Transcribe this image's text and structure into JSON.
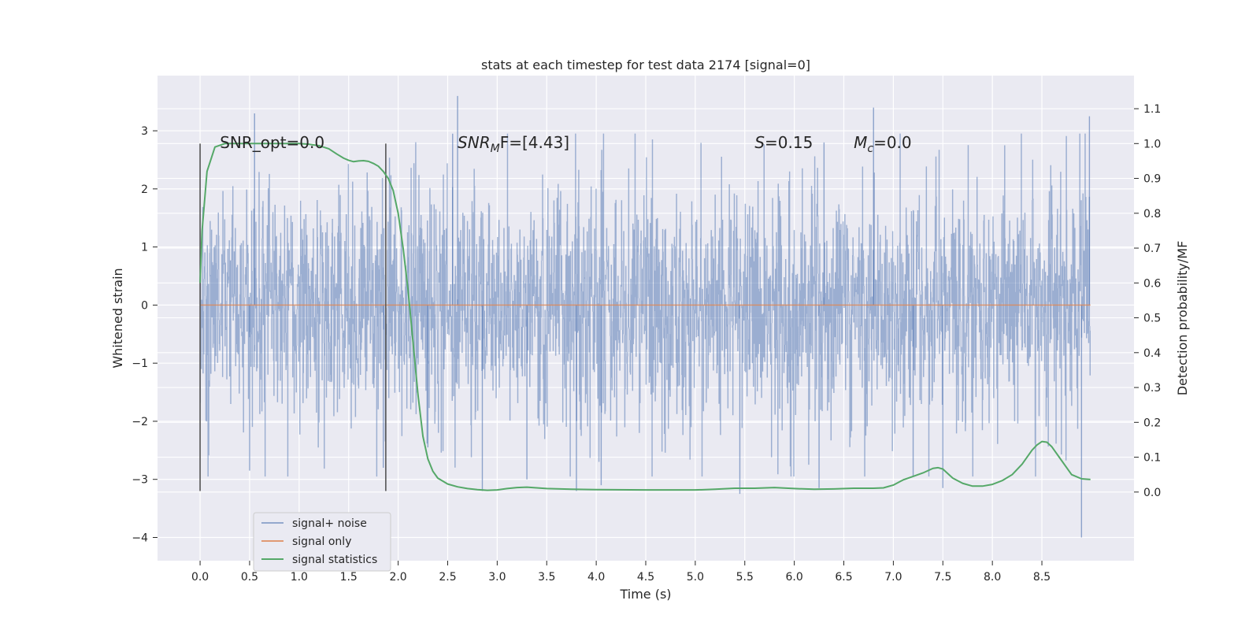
{
  "chart_data": {
    "type": "line",
    "title": "stats at each timestep for test data 2174 [signal=0]",
    "xlabel": "Time (s)",
    "ylabel": "Whitened strain",
    "y2label": "Detection probability/MF",
    "xlim": [
      -0.43,
      9.43
    ],
    "ylim": [
      -4.4,
      3.95
    ],
    "y2lim": [
      -0.197,
      1.195
    ],
    "x_ticks": [
      0.0,
      0.5,
      1.0,
      1.5,
      2.0,
      2.5,
      3.0,
      3.5,
      4.0,
      4.5,
      5.0,
      5.5,
      6.0,
      6.5,
      7.0,
      7.5,
      8.0,
      8.5
    ],
    "x_tick_labels": [
      "0.0",
      "0.5",
      "1.0",
      "1.5",
      "2.0",
      "2.5",
      "3.0",
      "3.5",
      "4.0",
      "4.5",
      "5.0",
      "5.5",
      "6.0",
      "6.5",
      "7.0",
      "7.5",
      "8.0",
      "8.5"
    ],
    "y_ticks": [
      -4,
      -3,
      -2,
      -1,
      0,
      1,
      2,
      3
    ],
    "y_tick_labels": [
      "−4",
      "−3",
      "−2",
      "−1",
      "0",
      "1",
      "2",
      "3"
    ],
    "y2_ticks": [
      0.0,
      0.1,
      0.2,
      0.3,
      0.4,
      0.5,
      0.6,
      0.7,
      0.8,
      0.9,
      1.0,
      1.1
    ],
    "y2_tick_labels": [
      "0.0",
      "0.1",
      "0.2",
      "0.3",
      "0.4",
      "0.5",
      "0.6",
      "0.7",
      "0.8",
      "0.9",
      "1.0",
      "1.1"
    ],
    "grid": true,
    "legend_position": "lower-left",
    "series": [
      {
        "name": "signal+ noise",
        "axis": "left",
        "color": "#4c72b0",
        "x_range": [
          0.0,
          8.99
        ],
        "envelope": {
          "typical_abs": 1.3,
          "peak_max": 3.6,
          "peak_min": -4.0
        },
        "spikes": [
          {
            "x": 0.55,
            "y": 3.3
          },
          {
            "x": 2.6,
            "y": 3.6
          },
          {
            "x": 6.8,
            "y": 3.4
          },
          {
            "x": 8.98,
            "y": 3.25
          },
          {
            "x": 8.9,
            "y": -4.0
          },
          {
            "x": 0.5,
            "y": -2.85
          },
          {
            "x": 2.3,
            "y": -2.45
          },
          {
            "x": 2.85,
            "y": -3.2
          },
          {
            "x": 3.3,
            "y": -3.0
          },
          {
            "x": 3.8,
            "y": -3.2
          },
          {
            "x": 4.05,
            "y": -3.1
          },
          {
            "x": 5.45,
            "y": -3.25
          },
          {
            "x": 6.25,
            "y": -3.15
          },
          {
            "x": 7.2,
            "y": -2.95
          },
          {
            "x": 7.5,
            "y": -3.15
          },
          {
            "x": 1.85,
            "y": -2.8
          },
          {
            "x": 2.55,
            "y": 2.95
          },
          {
            "x": 6.3,
            "y": 2.8
          }
        ]
      },
      {
        "name": "signal only",
        "axis": "left",
        "color": "#dd8452",
        "x": [
          0.0,
          8.99
        ],
        "y": [
          0.0,
          0.0
        ]
      },
      {
        "name": "signal statistics",
        "axis": "right",
        "color": "#55a868",
        "x": [
          0.0,
          0.02,
          0.07,
          0.15,
          0.25,
          0.4,
          0.6,
          0.8,
          1.0,
          1.1,
          1.2,
          1.3,
          1.38,
          1.45,
          1.5,
          1.55,
          1.6,
          1.65,
          1.7,
          1.75,
          1.8,
          1.85,
          1.9,
          1.95,
          2.0,
          2.05,
          2.1,
          2.15,
          2.2,
          2.25,
          2.3,
          2.35,
          2.4,
          2.5,
          2.6,
          2.7,
          2.8,
          2.9,
          3.0,
          3.1,
          3.2,
          3.3,
          3.4,
          3.5,
          3.75,
          4.0,
          4.5,
          5.0,
          5.2,
          5.4,
          5.6,
          5.8,
          6.0,
          6.2,
          6.4,
          6.6,
          6.8,
          6.9,
          7.0,
          7.1,
          7.2,
          7.3,
          7.4,
          7.45,
          7.5,
          7.6,
          7.7,
          7.8,
          7.9,
          8.0,
          8.1,
          8.2,
          8.3,
          8.4,
          8.45,
          8.5,
          8.55,
          8.6,
          8.7,
          8.8,
          8.9,
          8.99
        ],
        "y": [
          0.6,
          0.75,
          0.92,
          0.99,
          1.0,
          1.0,
          1.0,
          1.0,
          1.0,
          0.998,
          0.994,
          0.985,
          0.97,
          0.958,
          0.952,
          0.948,
          0.95,
          0.951,
          0.949,
          0.943,
          0.935,
          0.92,
          0.9,
          0.865,
          0.8,
          0.7,
          0.58,
          0.43,
          0.28,
          0.16,
          0.095,
          0.06,
          0.04,
          0.023,
          0.015,
          0.01,
          0.007,
          0.005,
          0.006,
          0.01,
          0.013,
          0.014,
          0.012,
          0.01,
          0.008,
          0.007,
          0.006,
          0.006,
          0.008,
          0.011,
          0.011,
          0.013,
          0.01,
          0.008,
          0.009,
          0.011,
          0.011,
          0.012,
          0.02,
          0.035,
          0.045,
          0.055,
          0.068,
          0.07,
          0.066,
          0.04,
          0.025,
          0.017,
          0.017,
          0.022,
          0.033,
          0.05,
          0.08,
          0.12,
          0.135,
          0.145,
          0.143,
          0.13,
          0.09,
          0.05,
          0.038,
          0.036
        ]
      }
    ],
    "vertical_lines": [
      {
        "x": 0.0,
        "ymin": -3.2,
        "ymax": 2.78,
        "color": "#555555"
      },
      {
        "x": 1.875,
        "ymin": -3.2,
        "ymax": 2.78,
        "color": "#555555"
      }
    ],
    "annotations": [
      {
        "x": 0.2,
        "y": 2.8,
        "text": "SNR_opt=0.0"
      },
      {
        "x": 2.6,
        "y": 2.8,
        "text_base": "SNR",
        "text_sub": "M",
        "text_tail": "F=[4.43]"
      },
      {
        "x": 5.6,
        "y": 2.8,
        "text_base": "S",
        "text_tail": "=0.15"
      },
      {
        "x": 6.6,
        "y": 2.8,
        "text_base": "M",
        "text_sub": "c",
        "text_tail": "=0.0"
      }
    ]
  }
}
